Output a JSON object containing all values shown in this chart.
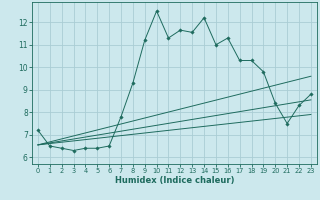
{
  "title": "",
  "xlabel": "Humidex (Indice chaleur)",
  "bg_color": "#cce8ed",
  "line_color": "#1e6b5e",
  "grid_color": "#aacdd4",
  "xlim": [
    -0.5,
    23.5
  ],
  "ylim": [
    5.7,
    12.9
  ],
  "yticks": [
    6,
    7,
    8,
    9,
    10,
    11,
    12
  ],
  "xticks": [
    0,
    1,
    2,
    3,
    4,
    5,
    6,
    7,
    8,
    9,
    10,
    11,
    12,
    13,
    14,
    15,
    16,
    17,
    18,
    19,
    20,
    21,
    22,
    23
  ],
  "main_line": {
    "x": [
      0,
      1,
      2,
      3,
      4,
      5,
      6,
      7,
      8,
      9,
      10,
      11,
      12,
      13,
      14,
      15,
      16,
      17,
      18,
      19,
      20,
      21,
      22,
      23
    ],
    "y": [
      7.2,
      6.5,
      6.4,
      6.3,
      6.4,
      6.4,
      6.5,
      7.8,
      9.3,
      11.2,
      12.5,
      11.3,
      11.65,
      11.55,
      12.2,
      11.0,
      11.3,
      10.3,
      10.3,
      9.8,
      8.4,
      7.5,
      8.3,
      8.8
    ]
  },
  "trend_lines": [
    {
      "x": [
        0,
        23
      ],
      "y": [
        6.55,
        9.6
      ]
    },
    {
      "x": [
        0,
        23
      ],
      "y": [
        6.55,
        8.55
      ]
    },
    {
      "x": [
        0,
        23
      ],
      "y": [
        6.55,
        7.9
      ]
    }
  ]
}
